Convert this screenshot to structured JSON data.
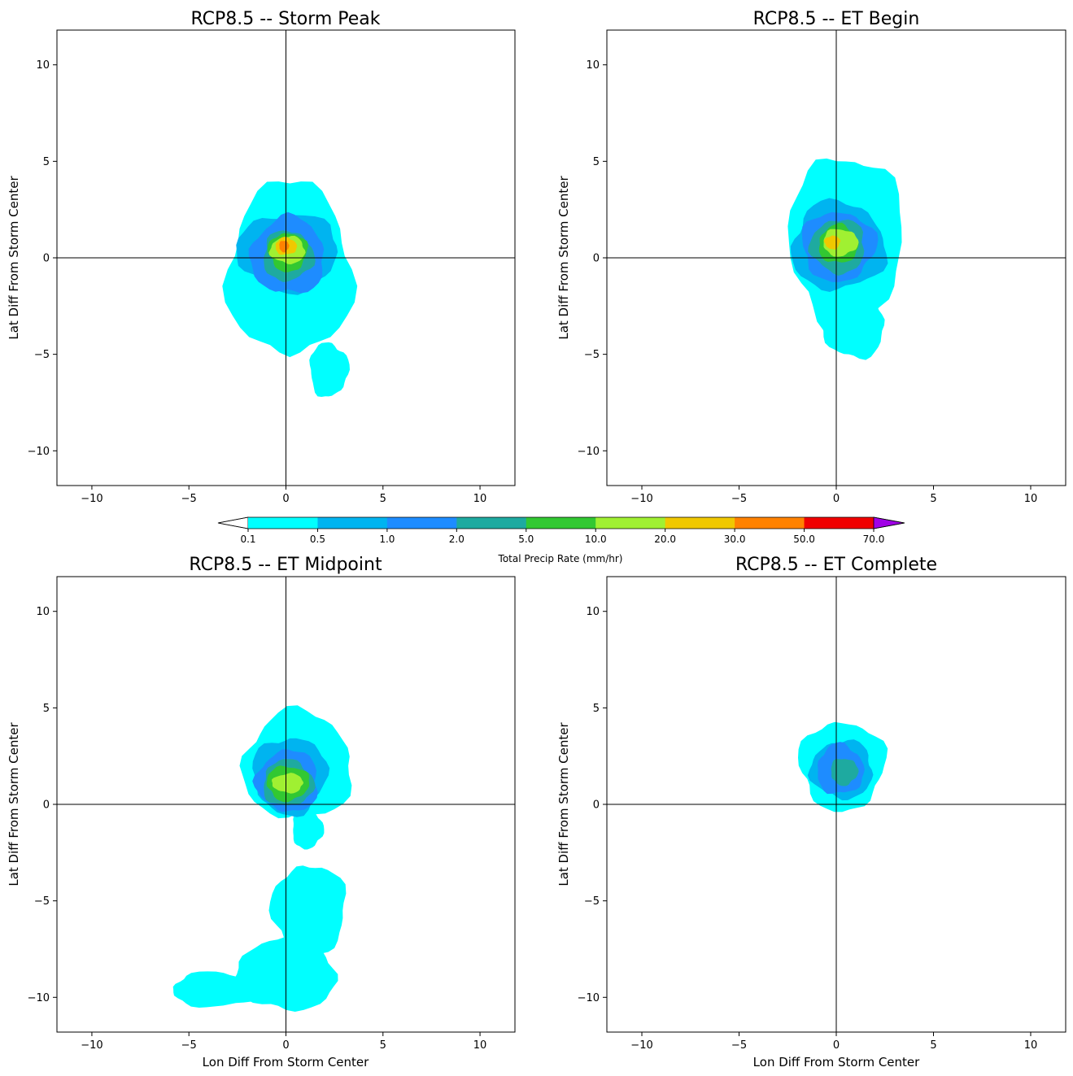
{
  "figure": {
    "panels": [
      {
        "title": "RCP8.5 -- Storm Peak",
        "ylabel": "Lat Diff From Storm Center",
        "xlabel": ""
      },
      {
        "title": "RCP8.5 -- ET Begin",
        "ylabel": "Lat Diff From Storm Center",
        "xlabel": ""
      },
      {
        "title": "RCP8.5 -- ET Midpoint",
        "ylabel": "Lat Diff From Storm Center",
        "xlabel": "Lon Diff From Storm Center"
      },
      {
        "title": "RCP8.5 -- ET Complete",
        "ylabel": "Lat Diff From Storm Center",
        "xlabel": "Lon Diff From Storm Center"
      }
    ],
    "colorbar": {
      "label": "Total Precip Rate (mm/hr)",
      "ticks": [
        "0.1",
        "0.5",
        "1.0",
        "2.0",
        "5.0",
        "10.0",
        "20.0",
        "30.0",
        "50.0",
        "70.0"
      ],
      "colors": [
        "#00ffff",
        "#00b4f0",
        "#1e8cff",
        "#1eaaa0",
        "#32c832",
        "#a0f032",
        "#f0c800",
        "#ff8200",
        "#f00000",
        "#a000e6"
      ],
      "extend": "both"
    }
  },
  "chart_data": [
    {
      "type": "filled-contour",
      "title": "RCP8.5 -- Storm Peak",
      "xlabel": "",
      "ylabel": "Lat Diff From Storm Center",
      "xlim": [
        -11.8,
        11.8
      ],
      "ylim": [
        -11.8,
        11.8
      ],
      "xticks": [
        -10,
        -5,
        0,
        5,
        10
      ],
      "yticks": [
        -10,
        -5,
        0,
        5,
        10
      ],
      "crosshair": [
        0,
        0
      ],
      "levels": [
        0.1,
        0.5,
        1.0,
        2.0,
        5.0,
        10.0,
        20.0,
        30.0,
        50.0,
        70.0
      ],
      "regions": [
        {
          "level": 0.1,
          "cx": 0.2,
          "cy": -0.6,
          "rx": 3.2,
          "ry": 4.5
        },
        {
          "level": 0.1,
          "cx": 2.2,
          "cy": -5.8,
          "rx": 1.0,
          "ry": 1.4
        },
        {
          "level": 0.5,
          "cx": 0.1,
          "cy": 0.3,
          "rx": 2.6,
          "ry": 2.0
        },
        {
          "level": 1.0,
          "cx": 0.1,
          "cy": 0.1,
          "rx": 1.9,
          "ry": 2.0
        },
        {
          "level": 2.0,
          "cx": 0.1,
          "cy": 0.1,
          "rx": 1.3,
          "ry": 1.3
        },
        {
          "level": 5.0,
          "cx": 0.1,
          "cy": 0.3,
          "rx": 1.0,
          "ry": 1.0
        },
        {
          "level": 10.0,
          "cx": 0.1,
          "cy": 0.4,
          "rx": 0.9,
          "ry": 0.7
        },
        {
          "level": 20.0,
          "cx": 0.0,
          "cy": 0.6,
          "rx": 0.55,
          "ry": 0.45
        },
        {
          "level": 30.0,
          "cx": -0.1,
          "cy": 0.6,
          "rx": 0.25,
          "ry": 0.3
        }
      ]
    },
    {
      "type": "filled-contour",
      "title": "RCP8.5 -- ET Begin",
      "xlabel": "",
      "ylabel": "Lat Diff From Storm Center",
      "xlim": [
        -11.8,
        11.8
      ],
      "ylim": [
        -11.8,
        11.8
      ],
      "xticks": [
        -10,
        -5,
        0,
        5,
        10
      ],
      "yticks": [
        -10,
        -5,
        0,
        5,
        10
      ],
      "crosshair": [
        0,
        0
      ],
      "levels": [
        0.1,
        0.5,
        1.0,
        2.0,
        5.0,
        10.0,
        20.0,
        30.0,
        50.0,
        70.0
      ],
      "regions": [
        {
          "level": 0.1,
          "cx": 0.5,
          "cy": 0.8,
          "rx": 2.9,
          "ry": 4.6
        },
        {
          "level": 0.1,
          "cx": 0.9,
          "cy": -3.5,
          "rx": 1.6,
          "ry": 1.7
        },
        {
          "level": 0.5,
          "cx": 0.1,
          "cy": 0.6,
          "rx": 2.4,
          "ry": 2.3
        },
        {
          "level": 1.0,
          "cx": 0.1,
          "cy": 0.6,
          "rx": 1.9,
          "ry": 1.8
        },
        {
          "level": 2.0,
          "cx": 0.1,
          "cy": 0.6,
          "rx": 1.4,
          "ry": 1.4
        },
        {
          "level": 5.0,
          "cx": 0.1,
          "cy": 0.7,
          "rx": 1.0,
          "ry": 1.0
        },
        {
          "level": 10.0,
          "cx": 0.2,
          "cy": 0.8,
          "rx": 0.9,
          "ry": 0.7
        },
        {
          "level": 20.0,
          "cx": -0.2,
          "cy": 0.8,
          "rx": 0.4,
          "ry": 0.35
        }
      ]
    },
    {
      "type": "filled-contour",
      "title": "RCP8.5 -- ET Midpoint",
      "xlabel": "Lon Diff From Storm Center",
      "ylabel": "Lat Diff From Storm Center",
      "xlim": [
        -11.8,
        11.8
      ],
      "ylim": [
        -11.8,
        11.8
      ],
      "xticks": [
        -10,
        -5,
        0,
        5,
        10
      ],
      "yticks": [
        -10,
        -5,
        0,
        5,
        10
      ],
      "crosshair": [
        0,
        0
      ],
      "levels": [
        0.1,
        0.5,
        1.0,
        2.0,
        5.0,
        10.0,
        20.0,
        30.0,
        50.0,
        70.0
      ],
      "regions": [
        {
          "level": 0.1,
          "cx": 0.6,
          "cy": 2.0,
          "rx": 2.8,
          "ry": 2.8
        },
        {
          "level": 0.1,
          "cx": 1.1,
          "cy": -1.3,
          "rx": 0.8,
          "ry": 1.0
        },
        {
          "level": 0.1,
          "cx": 1.2,
          "cy": -5.5,
          "rx": 1.9,
          "ry": 2.4
        },
        {
          "level": 0.1,
          "cx": 0.0,
          "cy": -8.8,
          "rx": 2.6,
          "ry": 1.9
        },
        {
          "level": 0.1,
          "cx": -3.6,
          "cy": -9.6,
          "rx": 2.3,
          "ry": 0.9
        },
        {
          "level": 0.5,
          "cx": 0.2,
          "cy": 1.5,
          "rx": 1.9,
          "ry": 2.0
        },
        {
          "level": 1.0,
          "cx": 0.1,
          "cy": 1.2,
          "rx": 1.6,
          "ry": 1.6
        },
        {
          "level": 2.0,
          "cx": 0.1,
          "cy": 1.1,
          "rx": 1.3,
          "ry": 1.2
        },
        {
          "level": 5.0,
          "cx": 0.1,
          "cy": 1.1,
          "rx": 1.1,
          "ry": 0.9
        },
        {
          "level": 10.0,
          "cx": 0.1,
          "cy": 1.1,
          "rx": 0.8,
          "ry": 0.5
        }
      ]
    },
    {
      "type": "filled-contour",
      "title": "RCP8.5 -- ET Complete",
      "xlabel": "Lon Diff From Storm Center",
      "ylabel": "Lat Diff From Storm Center",
      "xlim": [
        -11.8,
        11.8
      ],
      "ylim": [
        -11.8,
        11.8
      ],
      "xticks": [
        -10,
        -5,
        0,
        5,
        10
      ],
      "yticks": [
        -10,
        -5,
        0,
        5,
        10
      ],
      "crosshair": [
        0,
        0
      ],
      "levels": [
        0.1,
        0.5,
        1.0,
        2.0,
        5.0,
        10.0,
        20.0,
        30.0,
        50.0,
        70.0
      ],
      "regions": [
        {
          "level": 0.1,
          "cx": 0.3,
          "cy": 2.0,
          "rx": 2.2,
          "ry": 2.3
        },
        {
          "level": 0.5,
          "cx": 0.3,
          "cy": 1.8,
          "rx": 1.6,
          "ry": 1.5
        },
        {
          "level": 1.0,
          "cx": 0.2,
          "cy": 1.8,
          "rx": 1.2,
          "ry": 1.3
        },
        {
          "level": 2.0,
          "cx": 0.4,
          "cy": 1.7,
          "rx": 0.7,
          "ry": 0.7
        }
      ]
    }
  ]
}
